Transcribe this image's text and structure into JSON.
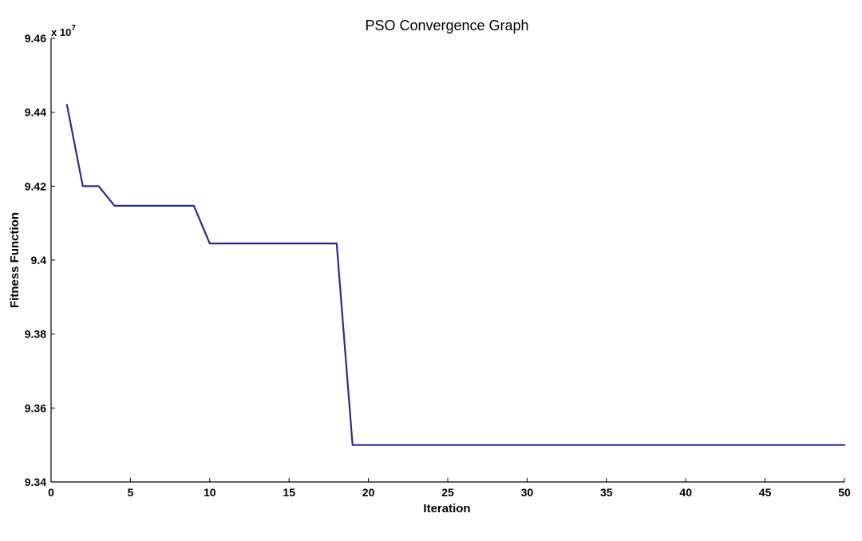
{
  "chart_data": {
    "type": "line",
    "title": "PSO Convergence Graph",
    "xlabel": "Iteration",
    "ylabel": "Fitness Function",
    "y_multiplier_base": "x 10",
    "y_multiplier_exp": "7",
    "xlim": [
      0,
      50
    ],
    "ylim": [
      9.34,
      9.46
    ],
    "x_ticks": [
      0,
      5,
      10,
      15,
      20,
      25,
      30,
      35,
      40,
      45,
      50
    ],
    "y_ticks": [
      9.34,
      9.36,
      9.38,
      9.4,
      9.42,
      9.44,
      9.46
    ],
    "y_tick_labels": [
      "9.34",
      "9.36",
      "9.38",
      "9.4",
      "9.42",
      "9.44",
      "9.46"
    ],
    "grid": false,
    "line_color": "#2b2b8c",
    "series": [
      {
        "x": [
          1,
          2,
          3,
          4,
          5,
          6,
          7,
          8,
          9,
          10,
          11,
          12,
          13,
          14,
          15,
          16,
          17,
          18,
          19,
          20,
          21,
          22,
          23,
          24,
          25,
          26,
          27,
          28,
          29,
          30,
          31,
          32,
          33,
          34,
          35,
          36,
          37,
          38,
          39,
          40,
          41,
          42,
          43,
          44,
          45,
          46,
          47,
          48,
          49,
          50
        ],
        "values": [
          9.442,
          9.42,
          9.42,
          9.4147,
          9.4147,
          9.4147,
          9.4147,
          9.4147,
          9.4147,
          9.4045,
          9.4045,
          9.4045,
          9.4045,
          9.4045,
          9.4045,
          9.4045,
          9.4045,
          9.4045,
          9.35,
          9.35,
          9.35,
          9.35,
          9.35,
          9.35,
          9.35,
          9.35,
          9.35,
          9.35,
          9.35,
          9.35,
          9.35,
          9.35,
          9.35,
          9.35,
          9.35,
          9.35,
          9.35,
          9.35,
          9.35,
          9.35,
          9.35,
          9.35,
          9.35,
          9.35,
          9.35,
          9.35,
          9.35,
          9.35,
          9.35,
          9.35
        ]
      }
    ]
  }
}
